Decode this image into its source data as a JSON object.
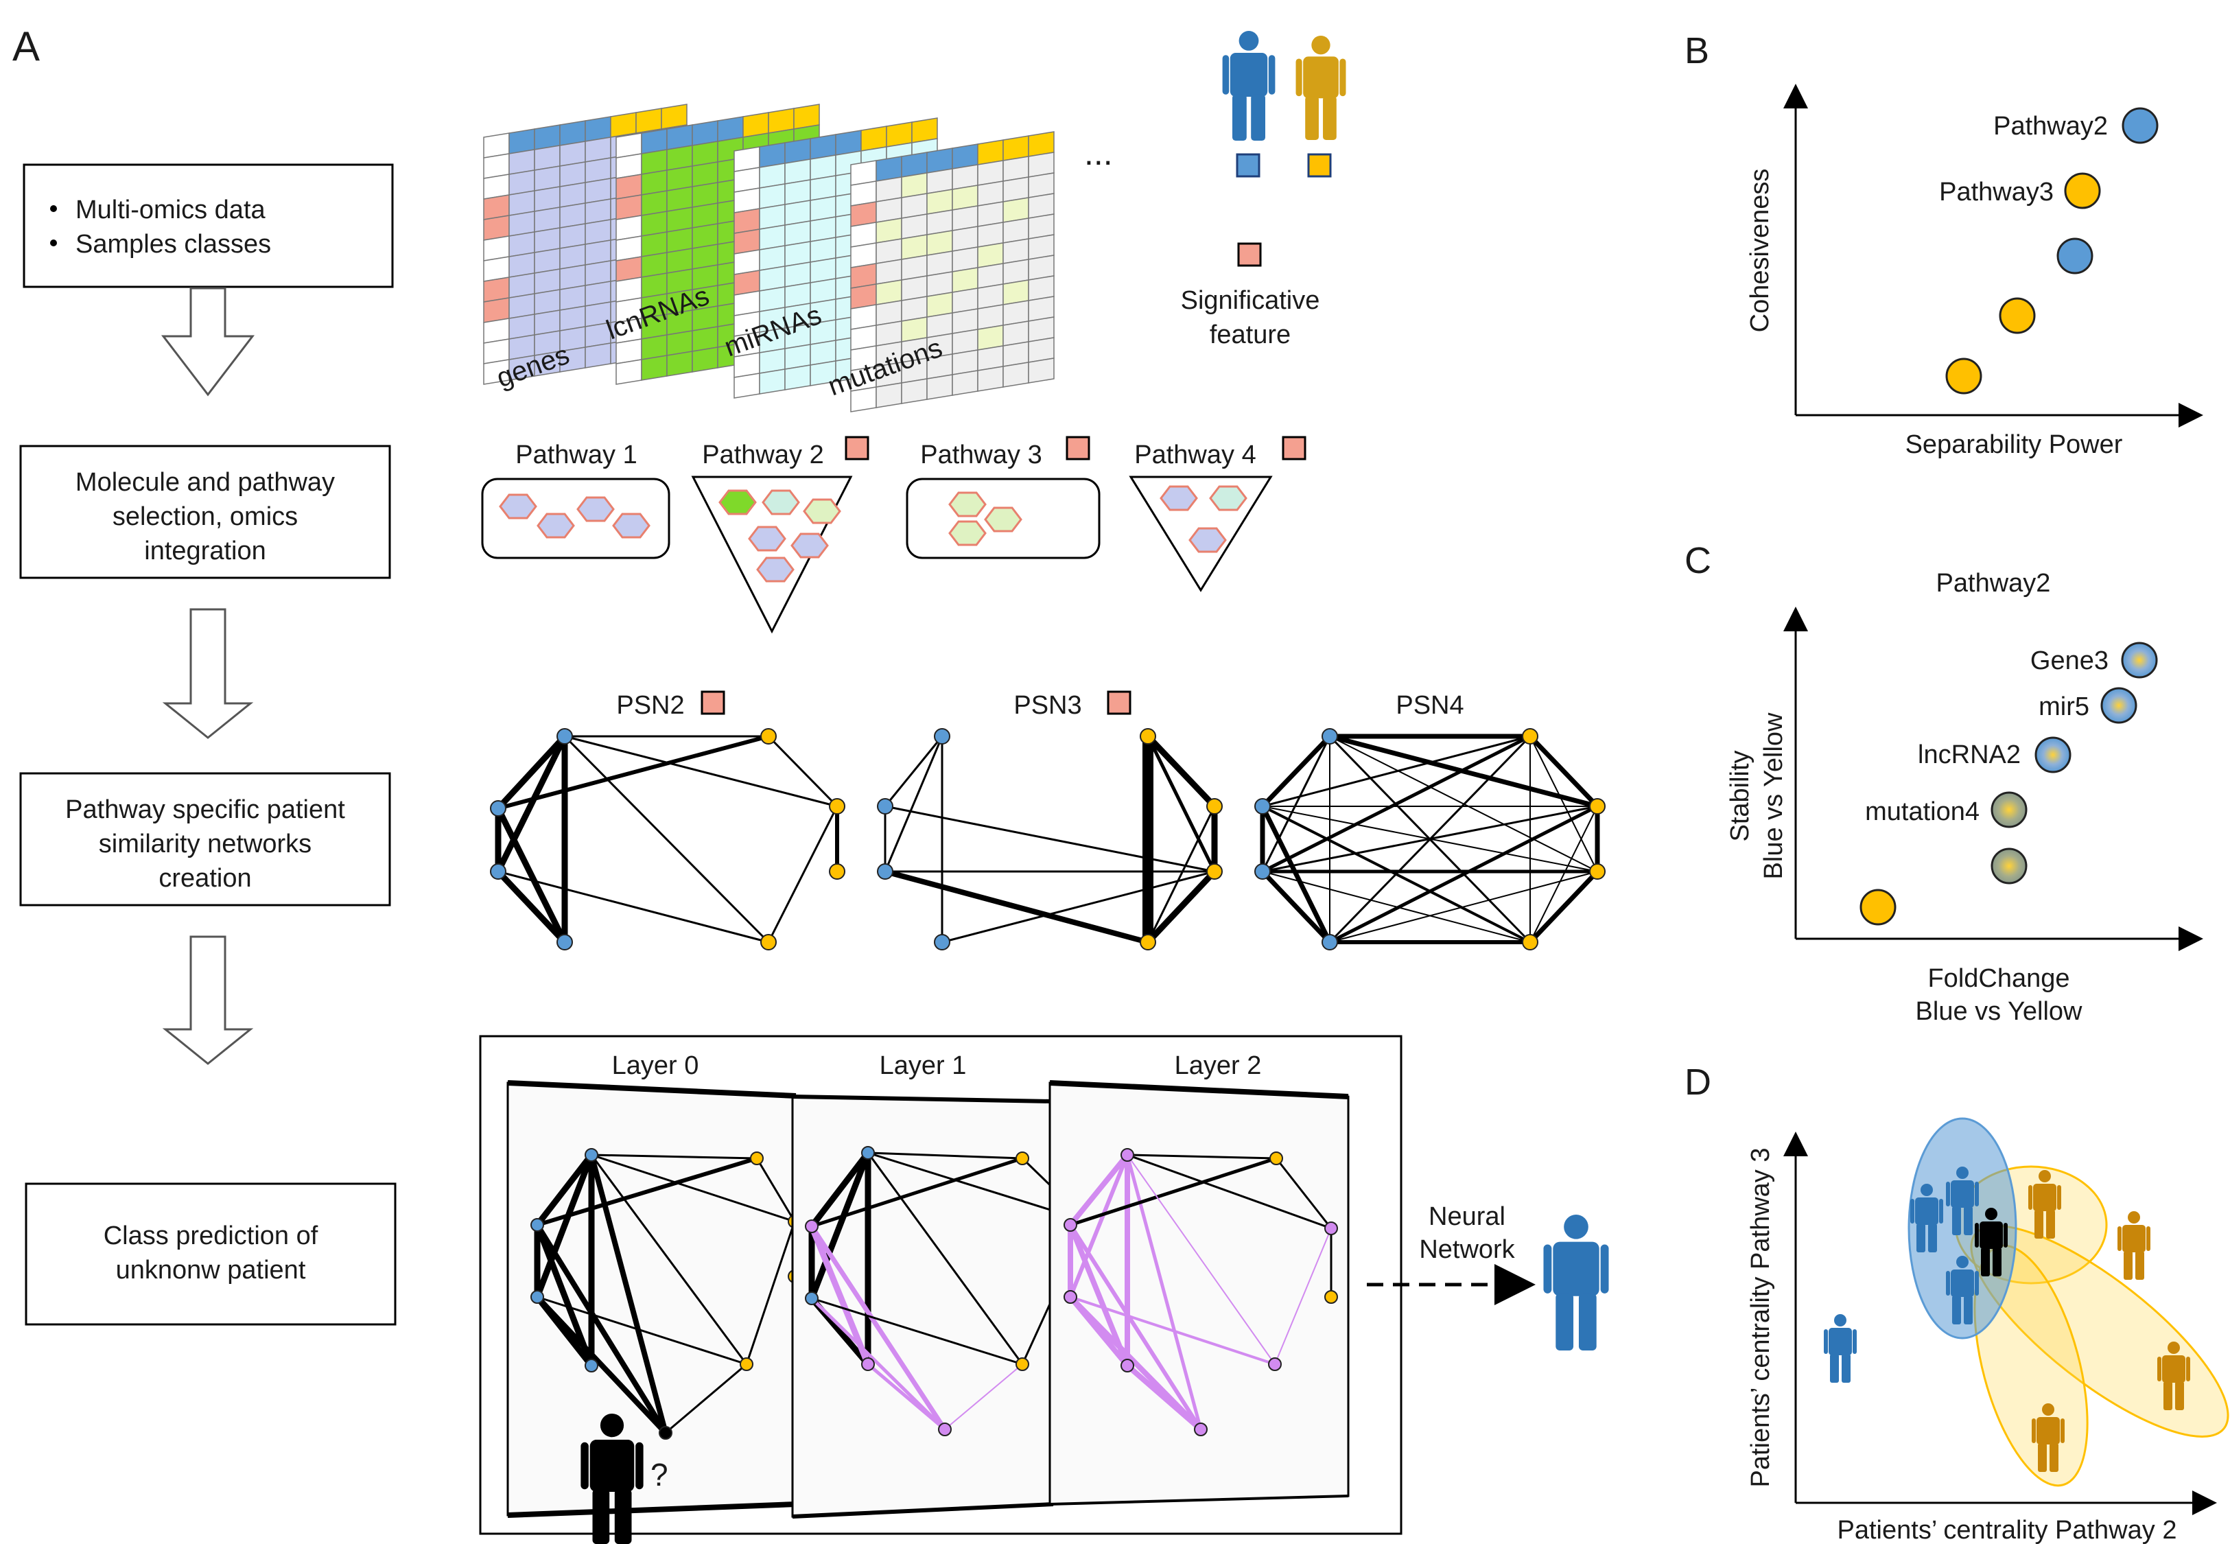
{
  "panels": {
    "a": "A",
    "b": "B",
    "c": "C",
    "d": "D"
  },
  "workflow": {
    "step1_bullets": [
      "Multi-omics data",
      "Samples classes"
    ],
    "step2": [
      "Molecule and pathway",
      "selection, omics",
      "integration"
    ],
    "step3": [
      "Pathway specific patient",
      "similarity networks",
      "creation"
    ],
    "step4": [
      "Class prediction of",
      "unknonw patient"
    ]
  },
  "omics": {
    "labels": [
      "genes",
      "lcnRNAs",
      "miRNAs",
      "mutations"
    ],
    "ellipsis": "...",
    "legend_significative": [
      "Significative",
      "feature"
    ]
  },
  "pathways": {
    "labels": [
      "Pathway 1",
      "Pathway 2",
      "Pathway 3",
      "Pathway 4"
    ]
  },
  "psn": {
    "labels": [
      "PSN2",
      "PSN3",
      "PSN4"
    ]
  },
  "layers": {
    "labels": [
      "Layer 0",
      "Layer 1",
      "Layer 2"
    ],
    "unknown_mark": "?",
    "nn_label": [
      "Neural",
      "Network"
    ]
  },
  "panel_b": {
    "ylabel": "Cohesiveness",
    "xlabel": "Separability Power",
    "points": [
      {
        "label": "Pathway2",
        "class": "blue"
      },
      {
        "label": "Pathway3",
        "class": "yellow"
      },
      {
        "label": "",
        "class": "blue"
      },
      {
        "label": "",
        "class": "yellow"
      },
      {
        "label": "",
        "class": "yellow"
      }
    ]
  },
  "panel_c": {
    "title": "Pathway2",
    "ylabel": [
      "Stability",
      "Blue vs Yellow"
    ],
    "xlabel": [
      "FoldChange",
      "Blue vs Yellow"
    ],
    "points": [
      {
        "label": "Gene3",
        "class": "blue"
      },
      {
        "label": "mir5",
        "class": "blue"
      },
      {
        "label": "lncRNA2",
        "class": "blue"
      },
      {
        "label": "mutation4",
        "class": "mixed"
      },
      {
        "label": "",
        "class": "mixed"
      },
      {
        "label": "",
        "class": "yellow"
      }
    ]
  },
  "panel_d": {
    "ylabel": "Patients’ centrality Pathway 3",
    "xlabel": "Patients’ centrality Pathway 2"
  },
  "colors": {
    "blue": "#5b9bd5",
    "yellow": "#ffc000",
    "person_blue": "#2e75b6",
    "person_yellow": "#d4a017",
    "person_d_yellow": "#c8860a",
    "salmon": "#f4a090",
    "lavender": "#c5cbef",
    "lime": "#7fd92a",
    "cyan": "#d9fafa",
    "pale_green": "#eef7c8",
    "grey_cell": "#efefef",
    "violet": "#d28bf0"
  }
}
